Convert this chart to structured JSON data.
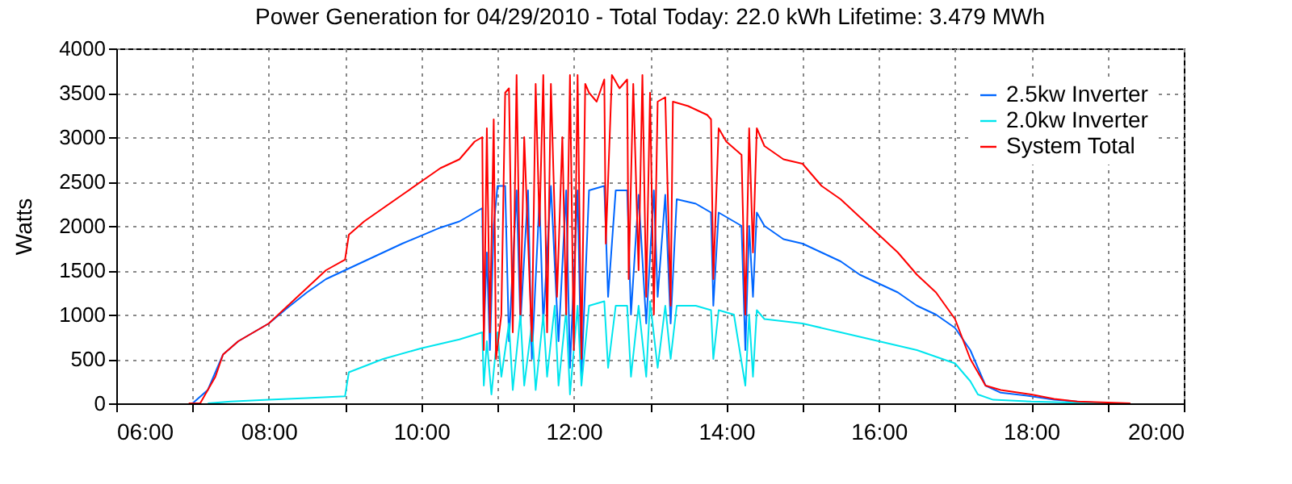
{
  "chart_data": {
    "type": "line",
    "title": "Power Generation for 04/29/2010 -  Total Today: 22.0 kWh    Lifetime: 3.479 MWh",
    "ylabel": "Watts",
    "xlim": [
      6,
      20
    ],
    "ylim": [
      0,
      4000
    ],
    "xticks": [
      {
        "value": 6,
        "label": "06:00"
      },
      {
        "value": 7,
        "label": null
      },
      {
        "value": 8,
        "label": "08:00"
      },
      {
        "value": 9,
        "label": null
      },
      {
        "value": 10,
        "label": "10:00"
      },
      {
        "value": 11,
        "label": null
      },
      {
        "value": 12,
        "label": "12:00"
      },
      {
        "value": 13,
        "label": null
      },
      {
        "value": 14,
        "label": "14:00"
      },
      {
        "value": 15,
        "label": null
      },
      {
        "value": 16,
        "label": "16:00"
      },
      {
        "value": 17,
        "label": null
      },
      {
        "value": 18,
        "label": "18:00"
      },
      {
        "value": 19,
        "label": null
      },
      {
        "value": 20,
        "label": "20:00"
      }
    ],
    "yticks": [
      0,
      500,
      1000,
      1500,
      2000,
      2500,
      3000,
      3500,
      4000
    ],
    "grid": true,
    "legend": "top right",
    "series": [
      {
        "name": "2.5kw Inverter",
        "color": "#0066ff",
        "x": [
          7.0,
          7.2,
          7.4,
          7.6,
          7.8,
          8.0,
          8.25,
          8.5,
          8.75,
          9.0,
          9.25,
          9.5,
          9.75,
          10.0,
          10.25,
          10.5,
          10.7,
          10.8,
          10.82,
          10.86,
          10.9,
          10.95,
          11.0,
          11.1,
          11.15,
          11.25,
          11.3,
          11.4,
          11.45,
          11.55,
          11.6,
          11.7,
          11.8,
          11.9,
          11.95,
          12.05,
          12.1,
          12.2,
          12.4,
          12.45,
          12.55,
          12.7,
          12.75,
          12.85,
          12.95,
          13.05,
          13.1,
          13.2,
          13.27,
          13.35,
          13.6,
          13.8,
          13.83,
          13.9,
          14.1,
          14.2,
          14.25,
          14.3,
          14.35,
          14.4,
          14.5,
          14.75,
          15.0,
          15.25,
          15.5,
          15.75,
          16.0,
          16.25,
          16.5,
          16.75,
          17.0,
          17.2,
          17.4,
          17.6,
          18.0,
          18.3,
          18.6,
          19.0
        ],
        "values": [
          0,
          150,
          550,
          700,
          800,
          900,
          1080,
          1250,
          1400,
          1500,
          1600,
          1700,
          1800,
          1890,
          1980,
          2050,
          2150,
          2200,
          800,
          1700,
          600,
          2000,
          2450,
          2450,
          700,
          2400,
          900,
          2400,
          500,
          2300,
          900,
          2450,
          700,
          2400,
          400,
          2400,
          300,
          2400,
          2450,
          1200,
          2400,
          2400,
          1000,
          2350,
          900,
          2400,
          1200,
          2350,
          900,
          2300,
          2250,
          2150,
          1100,
          2150,
          2050,
          2000,
          600,
          2000,
          1200,
          2150,
          2000,
          1850,
          1800,
          1700,
          1600,
          1450,
          1350,
          1250,
          1100,
          1000,
          850,
          600,
          200,
          120,
          80,
          40,
          20,
          0
        ]
      },
      {
        "name": "2.0kw Inverter",
        "color": "#00e5ee",
        "x": [
          7.2,
          7.5,
          8.0,
          8.5,
          9.0,
          9.05,
          9.5,
          10.0,
          10.5,
          10.8,
          10.82,
          10.86,
          10.92,
          11.0,
          11.05,
          11.15,
          11.2,
          11.3,
          11.35,
          11.45,
          11.5,
          11.6,
          11.65,
          11.75,
          11.8,
          11.9,
          11.95,
          12.05,
          12.1,
          12.2,
          12.4,
          12.45,
          12.55,
          12.7,
          12.75,
          12.85,
          12.95,
          13.0,
          13.1,
          13.2,
          13.27,
          13.35,
          13.6,
          13.8,
          13.83,
          13.9,
          14.1,
          14.25,
          14.3,
          14.35,
          14.4,
          14.5,
          15.0,
          15.5,
          16.0,
          16.5,
          17.0,
          17.2,
          17.3,
          17.5,
          18.0,
          18.5,
          19.0
        ],
        "values": [
          0,
          20,
          40,
          60,
          80,
          350,
          500,
          620,
          720,
          800,
          200,
          700,
          100,
          800,
          300,
          900,
          150,
          1000,
          200,
          900,
          150,
          1000,
          300,
          1100,
          200,
          1050,
          100,
          1100,
          200,
          1100,
          1150,
          400,
          1100,
          1100,
          300,
          1100,
          300,
          1150,
          400,
          1100,
          500,
          1100,
          1100,
          1050,
          500,
          1050,
          1000,
          200,
          1000,
          300,
          1050,
          950,
          900,
          800,
          700,
          600,
          450,
          250,
          100,
          40,
          20,
          10,
          0
        ]
      },
      {
        "name": "System Total",
        "color": "#ff0000",
        "x": [
          6.95,
          7.1,
          7.2,
          7.3,
          7.4,
          7.6,
          7.8,
          8.0,
          8.25,
          8.5,
          8.75,
          9.0,
          9.05,
          9.25,
          9.5,
          9.75,
          10.0,
          10.25,
          10.5,
          10.7,
          10.8,
          10.82,
          10.86,
          10.9,
          10.95,
          10.98,
          11.05,
          11.1,
          11.15,
          11.2,
          11.25,
          11.3,
          11.35,
          11.45,
          11.5,
          11.55,
          11.6,
          11.65,
          11.7,
          11.78,
          11.85,
          11.9,
          11.95,
          12.0,
          12.05,
          12.1,
          12.15,
          12.2,
          12.3,
          12.4,
          12.42,
          12.5,
          12.6,
          12.7,
          12.72,
          12.78,
          12.85,
          12.9,
          12.95,
          13.0,
          13.05,
          13.1,
          13.2,
          13.27,
          13.3,
          13.5,
          13.75,
          13.8,
          13.83,
          13.9,
          14.0,
          14.2,
          14.25,
          14.3,
          14.35,
          14.4,
          14.5,
          14.75,
          15.0,
          15.25,
          15.5,
          15.75,
          16.0,
          16.25,
          16.5,
          16.75,
          17.0,
          17.2,
          17.4,
          17.6,
          18.0,
          18.3,
          18.6,
          19.0,
          19.3
        ],
        "values": [
          0,
          0,
          150,
          300,
          550,
          700,
          800,
          900,
          1100,
          1300,
          1500,
          1620,
          1900,
          2050,
          2200,
          2350,
          2500,
          2650,
          2750,
          2950,
          3000,
          600,
          3100,
          800,
          3200,
          500,
          1000,
          3500,
          3550,
          800,
          3700,
          1000,
          3000,
          700,
          3600,
          2000,
          3700,
          800,
          3600,
          1200,
          3000,
          1000,
          3700,
          600,
          3700,
          500,
          3600,
          3500,
          3400,
          3650,
          1800,
          3700,
          3550,
          3650,
          1400,
          3600,
          1500,
          3700,
          1200,
          3500,
          1000,
          3400,
          3450,
          1100,
          3400,
          3350,
          3250,
          3200,
          1400,
          3100,
          2950,
          2800,
          1000,
          3100,
          1700,
          3100,
          2900,
          2750,
          2700,
          2450,
          2300,
          2100,
          1900,
          1700,
          1450,
          1250,
          950,
          500,
          200,
          150,
          100,
          50,
          20,
          10,
          0
        ]
      }
    ]
  }
}
